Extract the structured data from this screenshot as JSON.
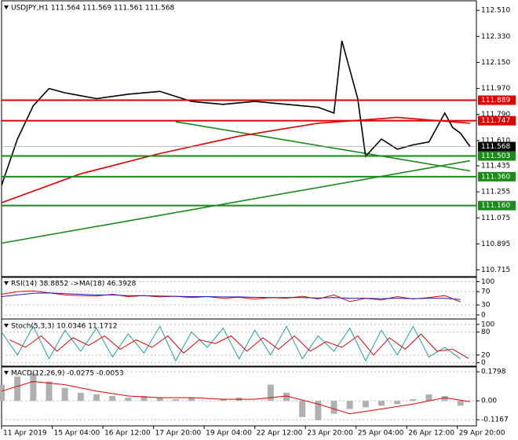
{
  "chart_data": [
    {
      "type": "line",
      "title": "USDJPY,H1  111.564 111.569 111.561 111.568",
      "xlim": [
        0,
        300
      ],
      "xticks": [
        {
          "value": 0,
          "label": "11 Apr 2019"
        },
        {
          "value": 32,
          "label": "15 Apr 04:00"
        },
        {
          "value": 64,
          "label": "16 Apr 12:00"
        },
        {
          "value": 96,
          "label": "17 Apr 20:00"
        },
        {
          "value": 128,
          "label": "19 Apr 04:00"
        },
        {
          "value": 160,
          "label": "22 Apr 12:00"
        },
        {
          "value": 192,
          "label": "23 Apr 20:00"
        },
        {
          "value": 224,
          "label": "25 Apr 04:00"
        },
        {
          "value": 256,
          "label": "26 Apr 12:00"
        },
        {
          "value": 288,
          "label": "29 Apr 20:00"
        }
      ],
      "ylim": [
        110.68,
        112.56
      ],
      "yticks": [
        {
          "value": 112.51,
          "label": "112.510"
        },
        {
          "value": 112.33,
          "label": "112.330"
        },
        {
          "value": 112.15,
          "label": "112.150"
        },
        {
          "value": 111.97,
          "label": "111.970"
        },
        {
          "value": 111.79,
          "label": "111.790"
        },
        {
          "value": 111.61,
          "label": "111.610"
        },
        111.435,
        111.255,
        111.075,
        110.895,
        110.715
      ],
      "series": [
        {
          "color": "#1a8a1a",
          "x": [
            0,
            296
          ],
          "values": [
            110.9,
            111.47
          ]
        },
        {
          "color": "#1a8a1a",
          "x": [
            110,
            296
          ],
          "values": [
            111.74,
            111.4
          ]
        },
        {
          "color": "#e00000",
          "x": [
            0,
            50,
            100,
            150,
            200,
            250,
            296
          ],
          "values": [
            111.18,
            111.38,
            111.52,
            111.64,
            111.73,
            111.77,
            111.73
          ]
        },
        {
          "color": "#000000",
          "x": [
            0,
            10,
            20,
            30,
            40,
            50,
            60,
            80,
            100,
            120,
            140,
            160,
            180,
            200,
            210,
            215,
            220,
            225,
            230,
            240,
            250,
            260,
            270,
            280,
            285,
            290,
            296
          ],
          "values": [
            111.3,
            111.62,
            111.85,
            111.97,
            111.94,
            111.92,
            111.9,
            111.93,
            111.95,
            111.88,
            111.86,
            111.88,
            111.86,
            111.84,
            111.8,
            112.3,
            112.1,
            111.9,
            111.5,
            111.62,
            111.55,
            111.58,
            111.6,
            111.8,
            111.7,
            111.66,
            111.568
          ]
        }
      ],
      "levels": [
        {
          "value": 111.889,
          "color": "#e00000"
        },
        {
          "value": 111.747,
          "color": "#e00000"
        },
        {
          "value": 111.568,
          "color": "#000000"
        },
        {
          "value": 111.503,
          "color": "#1a8a1a"
        },
        {
          "value": 111.36,
          "label": "111.360",
          "color": "#1a8a1a"
        },
        {
          "value": 111.16,
          "label": "111.160",
          "color": "#1a8a1a"
        }
      ]
    },
    {
      "type": "line",
      "title": "RSI(14) 38.8852 ->MA(18) 46.3928",
      "xlim": [
        0,
        300
      ],
      "ylim": [
        -5,
        108
      ],
      "yticks": [
        100,
        70,
        30,
        0
      ],
      "series": [
        {
          "color": "#e00000",
          "x": [
            0,
            10,
            20,
            30,
            40,
            50,
            60,
            70,
            80,
            90,
            100,
            110,
            120,
            130,
            140,
            150,
            160,
            170,
            180,
            190,
            200,
            210,
            220,
            230,
            240,
            250,
            260,
            270,
            280,
            290
          ],
          "values": [
            62,
            70,
            72,
            66,
            60,
            58,
            57,
            62,
            55,
            58,
            54,
            56,
            52,
            55,
            50,
            53,
            48,
            52,
            50,
            56,
            48,
            60,
            40,
            50,
            45,
            55,
            48,
            52,
            58,
            39
          ]
        },
        {
          "color": "#2020c0",
          "x": [
            0,
            10,
            20,
            30,
            40,
            50,
            60,
            70,
            80,
            90,
            100,
            110,
            120,
            130,
            140,
            150,
            160,
            170,
            180,
            190,
            200,
            210,
            220,
            230,
            240,
            250,
            260,
            270,
            280,
            290
          ],
          "values": [
            55,
            60,
            65,
            66,
            64,
            62,
            60,
            60,
            58,
            58,
            57,
            56,
            55,
            55,
            54,
            54,
            53,
            52,
            52,
            52,
            51,
            52,
            50,
            50,
            49,
            50,
            49,
            50,
            50,
            46
          ]
        }
      ]
    },
    {
      "type": "line",
      "title": "Stoch(5,3,3) 10.0346 11.1712",
      "xlim": [
        0,
        300
      ],
      "ylim": [
        -5,
        108
      ],
      "yticks": [
        100,
        80,
        20,
        0
      ],
      "series": [
        {
          "color": "#20a0a0",
          "x": [
            0,
            10,
            20,
            30,
            40,
            50,
            60,
            70,
            80,
            90,
            100,
            110,
            120,
            130,
            140,
            150,
            160,
            170,
            180,
            190,
            200,
            210,
            220,
            230,
            240,
            250,
            260,
            270,
            280,
            290
          ],
          "values": [
            80,
            20,
            95,
            10,
            85,
            30,
            90,
            15,
            75,
            25,
            95,
            5,
            80,
            40,
            90,
            10,
            85,
            20,
            95,
            10,
            70,
            30,
            90,
            5,
            85,
            20,
            95,
            15,
            40,
            10
          ]
        },
        {
          "color": "#e00000",
          "x": [
            5,
            15,
            25,
            35,
            45,
            55,
            65,
            75,
            85,
            95,
            105,
            115,
            125,
            135,
            145,
            155,
            165,
            175,
            185,
            195,
            205,
            215,
            225,
            235,
            245,
            255,
            265,
            275,
            285,
            295
          ],
          "values": [
            60,
            40,
            70,
            30,
            65,
            45,
            70,
            35,
            60,
            40,
            70,
            25,
            60,
            50,
            70,
            30,
            65,
            35,
            70,
            30,
            55,
            40,
            70,
            20,
            65,
            35,
            75,
            30,
            35,
            11
          ]
        }
      ]
    },
    {
      "type": "bar",
      "title": "MACD(12,26,9) -0.0275 -0.0053",
      "xlim": [
        0,
        300
      ],
      "ylim": [
        -0.14,
        0.2
      ],
      "yticks": [
        0.1798,
        {
          "value": 0,
          "label": "0.00"
        },
        -0.1167
      ],
      "series": [
        {
          "kind": "bar",
          "color": "#b0b0b0",
          "x": [
            0,
            10,
            20,
            30,
            40,
            50,
            60,
            70,
            80,
            90,
            100,
            110,
            120,
            130,
            140,
            150,
            160,
            170,
            180,
            190,
            200,
            210,
            220,
            230,
            240,
            250,
            260,
            270,
            280,
            290
          ],
          "values": [
            0.1,
            0.15,
            0.17,
            0.12,
            0.08,
            0.05,
            0.04,
            0.03,
            0.02,
            0.03,
            0.02,
            0.01,
            0.02,
            0,
            0.01,
            0.02,
            0,
            0.1,
            0.05,
            -0.1,
            -0.12,
            -0.08,
            -0.05,
            -0.04,
            -0.03,
            -0.02,
            0.01,
            0.04,
            0.03,
            -0.03
          ]
        },
        {
          "color": "#e00000",
          "x": [
            0,
            20,
            40,
            60,
            80,
            100,
            120,
            140,
            160,
            180,
            200,
            220,
            240,
            260,
            280,
            296
          ],
          "values": [
            0.06,
            0.12,
            0.1,
            0.06,
            0.03,
            0.02,
            0.02,
            0.01,
            0.01,
            0.03,
            -0.02,
            -0.08,
            -0.05,
            -0.02,
            0.02,
            -0.005
          ]
        }
      ]
    }
  ]
}
